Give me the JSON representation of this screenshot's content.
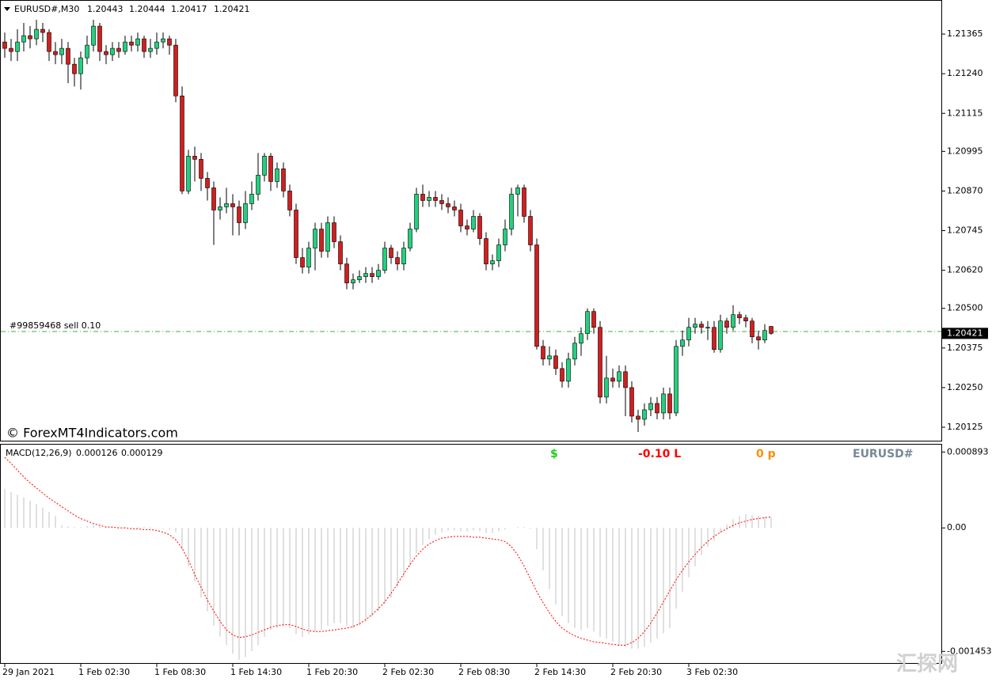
{
  "chart_data": [
    {
      "type": "candlestick",
      "title": "EURUSD#,M30",
      "categories": [
        "29 Jan 2021",
        null,
        null,
        null,
        null,
        null,
        null,
        null,
        null,
        null,
        null,
        null,
        "1 Feb 02:30",
        null,
        null,
        null,
        null,
        null,
        null,
        null,
        null,
        null,
        null,
        null,
        "1 Feb 08:30",
        null,
        null,
        null,
        null,
        null,
        null,
        null,
        null,
        null,
        null,
        null,
        "1 Feb 14:30",
        null,
        null,
        null,
        null,
        null,
        null,
        null,
        null,
        null,
        null,
        null,
        "1 Feb 20:30",
        null,
        null,
        null,
        null,
        null,
        null,
        null,
        null,
        null,
        null,
        null,
        "2 Feb 02:30",
        null,
        null,
        null,
        null,
        null,
        null,
        null,
        null,
        null,
        null,
        null,
        "2 Feb 08:30",
        null,
        null,
        null,
        null,
        null,
        null,
        null,
        null,
        null,
        null,
        null,
        "2 Feb 14:30",
        null,
        null,
        null,
        null,
        null,
        null,
        null,
        null,
        null,
        null,
        null,
        "2 Feb 20:30",
        null,
        null,
        null,
        null,
        null,
        null,
        null,
        null,
        null,
        null,
        null,
        "3 Feb 02:30",
        null,
        null,
        null,
        null,
        null,
        null,
        null,
        null,
        null,
        null,
        null,
        null,
        null
      ],
      "open": [
        1.2134,
        1.2132,
        1.2131,
        1.2134,
        1.2136,
        1.2135,
        1.2138,
        1.2137,
        1.2131,
        1.213,
        1.2132,
        1.2127,
        1.2124,
        1.2129,
        1.2133,
        1.2139,
        1.2131,
        1.213,
        1.2132,
        1.2131,
        1.2134,
        1.2133,
        1.2135,
        1.2131,
        1.2132,
        1.2134,
        1.2135,
        1.2133,
        1.2117,
        1.2087,
        1.2098,
        1.2097,
        1.2091,
        1.2088,
        1.2081,
        1.2082,
        1.2083,
        1.2082,
        1.2077,
        1.2083,
        1.2086,
        1.2092,
        1.2098,
        1.209,
        1.2094,
        1.2087,
        1.2081,
        1.2066,
        1.2063,
        1.2069,
        1.2075,
        1.2068,
        1.2077,
        1.2071,
        1.2064,
        1.2058,
        1.2059,
        1.206,
        1.2061,
        1.206,
        1.2062,
        1.2069,
        1.2066,
        1.2064,
        1.2069,
        1.2075,
        1.2086,
        1.2084,
        1.2085,
        1.2084,
        1.2083,
        1.2082,
        1.2081,
        1.2076,
        1.2075,
        1.2079,
        1.2072,
        1.2064,
        1.2065,
        1.207,
        1.2075,
        1.2086,
        1.2088,
        1.2079,
        1.207,
        1.2038,
        1.2034,
        1.2035,
        1.2031,
        1.2027,
        1.2034,
        1.2039,
        1.2042,
        1.2049,
        1.2044,
        1.2022,
        1.2028,
        1.2027,
        1.203,
        1.2025,
        1.2016,
        1.2015,
        1.2018,
        1.202,
        1.2017,
        1.2023,
        1.2017,
        1.2038,
        1.204,
        1.2044,
        1.2045,
        1.2044,
        1.2044,
        1.2037,
        1.2046,
        1.2044,
        1.2048,
        1.2047,
        1.2046,
        1.2041,
        1.204,
        1.20443
      ],
      "high": [
        1.2137,
        1.2135,
        1.2138,
        1.214,
        1.2139,
        1.2141,
        1.214,
        1.2138,
        1.2134,
        1.2135,
        1.2134,
        1.2129,
        1.2131,
        1.2136,
        1.2141,
        1.214,
        1.2133,
        1.2134,
        1.2134,
        1.2136,
        1.2136,
        1.2137,
        1.2136,
        1.2135,
        1.2137,
        1.2137,
        1.2136,
        1.2135,
        1.212,
        1.21,
        1.2101,
        1.2099,
        1.2093,
        1.209,
        1.2085,
        1.2088,
        1.2086,
        1.2084,
        1.2087,
        1.209,
        1.2099,
        1.2099,
        1.2099,
        1.2096,
        1.2096,
        1.2089,
        1.2083,
        1.2069,
        1.2071,
        1.2077,
        1.2077,
        1.2079,
        1.2079,
        1.2073,
        1.2066,
        1.2061,
        1.2062,
        1.2063,
        1.2063,
        1.2064,
        1.2071,
        1.207,
        1.2068,
        1.2071,
        1.2077,
        1.2088,
        1.2089,
        1.2087,
        1.2087,
        1.2086,
        1.2085,
        1.2084,
        1.2083,
        1.2078,
        1.2081,
        1.208,
        1.2074,
        1.2067,
        1.2072,
        1.2078,
        1.2088,
        1.2089,
        1.2089,
        1.2081,
        1.2072,
        1.204,
        1.2038,
        1.2037,
        1.2033,
        1.2036,
        1.2041,
        1.2044,
        1.205,
        1.205,
        1.2046,
        1.2035,
        1.2031,
        1.2032,
        1.2032,
        1.2027,
        1.2018,
        1.202,
        1.2022,
        1.2022,
        1.2025,
        1.2025,
        1.204,
        1.2043,
        1.2047,
        1.2047,
        1.2046,
        1.2046,
        1.2046,
        1.2048,
        1.2047,
        1.2051,
        1.2049,
        1.2048,
        1.2047,
        1.2043,
        1.2045,
        1.20444
      ],
      "low": [
        1.2129,
        1.2128,
        1.2128,
        1.2131,
        1.2132,
        1.2133,
        1.2134,
        1.2128,
        1.2127,
        1.2127,
        1.2121,
        1.212,
        1.2119,
        1.2127,
        1.2131,
        1.2128,
        1.2127,
        1.2128,
        1.2129,
        1.213,
        1.2131,
        1.2131,
        1.2129,
        1.2129,
        1.213,
        1.2132,
        1.213,
        1.2115,
        1.2086,
        1.2086,
        1.209,
        1.2087,
        1.2084,
        1.207,
        1.2078,
        1.208,
        1.2073,
        1.2073,
        1.2075,
        1.2081,
        1.2084,
        1.209,
        1.2087,
        1.2088,
        1.2085,
        1.2079,
        1.2064,
        1.2061,
        1.2061,
        1.2062,
        1.2066,
        1.2066,
        1.2069,
        1.2062,
        1.2056,
        1.2056,
        1.2058,
        1.2058,
        1.2058,
        1.2059,
        1.2061,
        1.2064,
        1.2062,
        1.2062,
        1.2068,
        1.2074,
        1.2082,
        1.2082,
        1.2082,
        1.2081,
        1.208,
        1.2079,
        1.2074,
        1.2073,
        1.2074,
        1.207,
        1.2062,
        1.2062,
        1.2063,
        1.2068,
        1.2073,
        1.2079,
        1.2077,
        1.2068,
        1.2037,
        1.2032,
        1.2032,
        1.2029,
        1.2025,
        1.2025,
        1.2032,
        1.2035,
        1.204,
        1.2042,
        1.202,
        1.202,
        1.2025,
        1.2025,
        1.2016,
        1.2014,
        1.2011,
        1.2013,
        1.2016,
        1.2015,
        1.2015,
        1.2015,
        1.2016,
        1.2035,
        1.2038,
        1.2042,
        1.2042,
        1.204,
        1.2036,
        1.2036,
        1.2042,
        1.2043,
        1.2045,
        1.2044,
        1.2039,
        1.2037,
        1.2039,
        1.20417
      ],
      "close": [
        1.2132,
        1.2131,
        1.2134,
        1.2136,
        1.2135,
        1.2138,
        1.2137,
        1.2131,
        1.213,
        1.2132,
        1.2127,
        1.2124,
        1.2129,
        1.2133,
        1.2139,
        1.2131,
        1.213,
        1.2132,
        1.2131,
        1.2134,
        1.2133,
        1.2135,
        1.2131,
        1.2132,
        1.2134,
        1.2135,
        1.2133,
        1.2117,
        1.2087,
        1.2098,
        1.2097,
        1.2091,
        1.2088,
        1.2081,
        1.2082,
        1.2083,
        1.2082,
        1.2077,
        1.2083,
        1.2086,
        1.2092,
        1.2098,
        1.209,
        1.2094,
        1.2087,
        1.2081,
        1.2066,
        1.2063,
        1.2069,
        1.2075,
        1.2068,
        1.2077,
        1.2071,
        1.2064,
        1.2058,
        1.2059,
        1.206,
        1.2061,
        1.206,
        1.2062,
        1.2069,
        1.2066,
        1.2064,
        1.2069,
        1.2075,
        1.2086,
        1.2084,
        1.2085,
        1.2084,
        1.2083,
        1.2082,
        1.2081,
        1.2076,
        1.2075,
        1.2079,
        1.2072,
        1.2064,
        1.2065,
        1.207,
        1.2075,
        1.2086,
        1.2088,
        1.2079,
        1.207,
        1.2038,
        1.2034,
        1.2035,
        1.2031,
        1.2027,
        1.2034,
        1.2039,
        1.2042,
        1.2049,
        1.2044,
        1.2022,
        1.2028,
        1.2027,
        1.203,
        1.2025,
        1.2016,
        1.2015,
        1.2018,
        1.202,
        1.2017,
        1.2023,
        1.2017,
        1.2038,
        1.204,
        1.2044,
        1.2045,
        1.2044,
        1.2044,
        1.2037,
        1.2046,
        1.2044,
        1.2048,
        1.2047,
        1.2046,
        1.2041,
        1.204,
        1.2043,
        1.20421
      ],
      "up_color": "#22d17e",
      "down_color": "#d11f1f",
      "ylim": [
        1.2008,
        1.21465
      ],
      "yticks": [
        1.21365,
        {
          "value": 1.2124,
          "label": "1.21240"
        },
        1.21115,
        1.20995,
        {
          "value": 1.2087,
          "label": "1.20870"
        },
        1.20745,
        {
          "value": 1.2062,
          "label": "1.20620"
        },
        {
          "value": 1.205,
          "label": "1.20500"
        },
        1.20375,
        {
          "value": 1.2025,
          "label": "1.20250"
        },
        1.20125
      ],
      "order": {
        "label": "#99859468 sell 0.10",
        "price": 1.20427,
        "color": "#3cb043"
      },
      "watermark": "© ForexMT4Indicators.com",
      "logo": "汇探网"
    },
    {
      "type": "macd",
      "title": "MACD(12,26,9)",
      "histogram": [
        0.00046,
        0.00042,
        0.00039,
        0.00036,
        0.00032,
        0.00028,
        0.00024,
        0.00019,
        0.00014,
        3e-05,
        2e-05,
        1e-05,
        1e-05,
        2e-05,
        3e-05,
        2e-05,
        1e-05,
        1e-05,
        1e-05,
        1e-05,
        1e-05,
        1e-05,
        1e-05,
        1e-05,
        0.0,
        -1e-05,
        -2e-05,
        -5e-05,
        -0.00025,
        -0.00045,
        -0.00063,
        -0.00082,
        -0.00098,
        -0.00115,
        -0.00128,
        -0.00138,
        -0.00148,
        -0.00155,
        -0.00152,
        -0.00145,
        -0.00138,
        -0.00128,
        -0.0012,
        -0.00118,
        -0.00116,
        -0.00118,
        -0.00125,
        -0.00128,
        -0.00125,
        -0.00122,
        -0.0012,
        -0.00115,
        -0.00112,
        -0.00112,
        -0.00115,
        -0.00118,
        -0.00115,
        -0.0011,
        -0.00104,
        -0.00098,
        -0.0009,
        -0.00082,
        -0.0007,
        -0.00058,
        -0.00045,
        -0.0003,
        -0.0002,
        -0.00013,
        -8e-05,
        -5e-05,
        -3e-05,
        -3e-05,
        -4e-05,
        -4e-05,
        -3e-05,
        -4e-05,
        -6e-05,
        -6e-05,
        -4e-05,
        -2e-05,
        0.0,
        1e-05,
        1e-05,
        -1e-05,
        -0.00025,
        -0.0005,
        -0.00072,
        -0.0009,
        -0.00104,
        -0.00112,
        -0.00118,
        -0.0012,
        -0.00118,
        -0.00122,
        -0.00128,
        -0.0013,
        -0.00134,
        -0.00138,
        -0.0014,
        -0.00142,
        -0.00142,
        -0.0014,
        -0.00135,
        -0.0013,
        -0.00124,
        -0.00118,
        -0.00095,
        -0.00075,
        -0.00058,
        -0.00045,
        -0.00032,
        -0.00022,
        -0.00015,
        -5e-05,
        4e-05,
        0.0001,
        0.00014,
        0.00016,
        0.00015,
        0.00014,
        0.00013,
        0.000126
      ],
      "signal": [
        0.00083,
        0.00076,
        0.00068,
        0.0006,
        0.00053,
        0.00047,
        0.00041,
        0.00035,
        0.0003,
        0.00025,
        0.0002,
        0.00015,
        0.00011,
        8e-05,
        5e-05,
        3e-05,
        1e-05,
        1e-05,
        0.0,
        0.0,
        -1e-05,
        -1e-05,
        -2e-05,
        -2e-05,
        -3e-05,
        -5e-05,
        -8e-05,
        -0.00014,
        -0.00024,
        -0.00038,
        -0.00055,
        -0.0007,
        -0.00085,
        -0.00098,
        -0.0011,
        -0.0012,
        -0.00126,
        -0.00129,
        -0.00128,
        -0.00126,
        -0.00123,
        -0.0012,
        -0.00117,
        -0.00115,
        -0.00114,
        -0.00114,
        -0.00116,
        -0.00119,
        -0.00121,
        -0.00122,
        -0.00122,
        -0.00121,
        -0.0012,
        -0.00119,
        -0.00118,
        -0.00116,
        -0.00113,
        -0.00108,
        -0.00102,
        -0.00095,
        -0.00087,
        -0.00077,
        -0.00066,
        -0.00054,
        -0.00043,
        -0.00033,
        -0.00025,
        -0.00019,
        -0.00015,
        -0.00012,
        -0.00011,
        -0.0001,
        -0.0001,
        -0.0001,
        -0.00011,
        -0.00011,
        -0.00012,
        -0.00013,
        -0.00014,
        -0.00016,
        -0.00022,
        -0.00032,
        -0.00045,
        -0.0006,
        -0.00075,
        -0.00088,
        -0.001,
        -0.0011,
        -0.00118,
        -0.00123,
        -0.00127,
        -0.0013,
        -0.00132,
        -0.00134,
        -0.00135,
        -0.00136,
        -0.00137,
        -0.00138,
        -0.00138,
        -0.00135,
        -0.0013,
        -0.00122,
        -0.00112,
        -0.001,
        -0.00087,
        -0.00074,
        -0.00061,
        -0.0005,
        -0.0004,
        -0.00031,
        -0.00023,
        -0.00016,
        -0.0001,
        -5e-05,
        -1e-05,
        3e-05,
        6e-05,
        8e-05,
        0.0001,
        0.00011,
        0.00012,
        0.000129
      ],
      "histogram_color": "#c0c0c0",
      "signal_color": "#ff0000",
      "ylim": [
        -0.00159,
        0.00098
      ],
      "yticks": [
        0.000893,
        {
          "value": 0,
          "label": "0.00"
        },
        -0.001453
      ],
      "labels": [
        "$",
        "-0.10 L",
        "0 p",
        "EURUSD#"
      ],
      "label_colors": [
        "#19d219",
        "#ff0000",
        "#ff8c00",
        "#778899"
      ]
    }
  ]
}
